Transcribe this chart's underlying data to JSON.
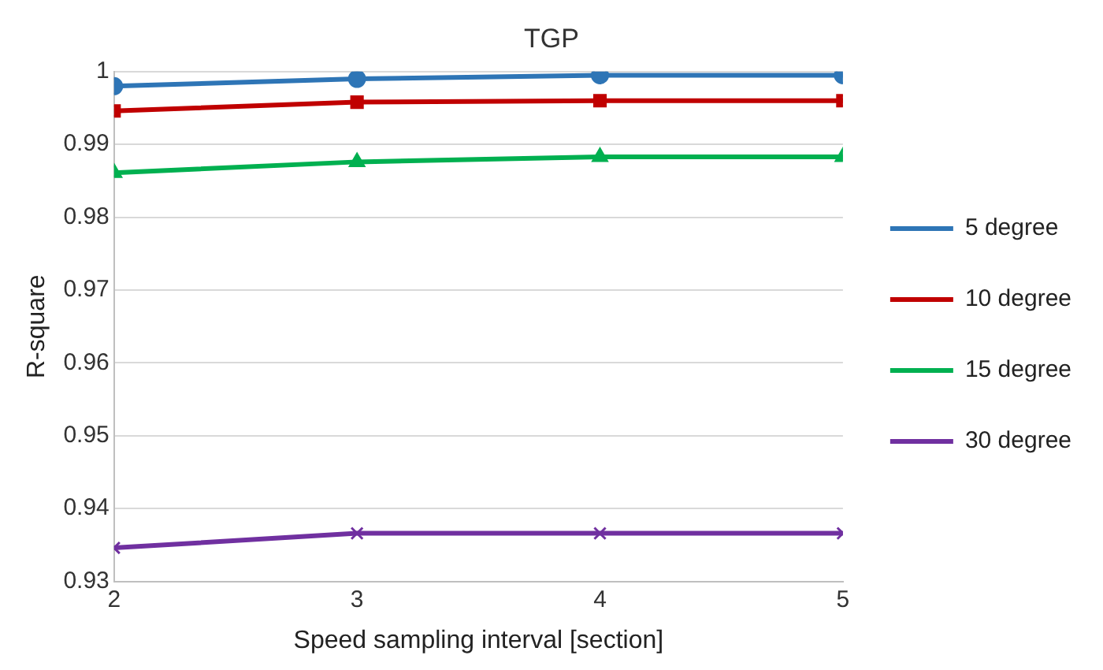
{
  "chart_data": {
    "type": "line",
    "title": "TGP",
    "xlabel": "Speed sampling interval [section]",
    "ylabel": "R-square",
    "x": [
      2,
      3,
      4,
      5
    ],
    "xlim": [
      2,
      5
    ],
    "xticks": [
      2,
      3,
      4,
      5
    ],
    "ylim": [
      0.93,
      1
    ],
    "yticks": [
      0.93,
      0.94,
      0.95,
      0.96,
      0.97,
      0.98,
      0.99,
      1
    ],
    "grid": "y",
    "legend": "right",
    "series": [
      {
        "name": "5 degree",
        "color": "#2e75b6",
        "marker": "circle",
        "values": [
          0.998,
          0.999,
          0.9995,
          0.9995
        ]
      },
      {
        "name": "10 degree",
        "color": "#c00000",
        "marker": "square",
        "values": [
          0.9946,
          0.9958,
          0.996,
          0.996
        ]
      },
      {
        "name": "15 degree",
        "color": "#00b050",
        "marker": "triangle",
        "values": [
          0.9861,
          0.9876,
          0.9883,
          0.9883
        ]
      },
      {
        "name": "30 degree",
        "color": "#7030a0",
        "marker": "cross",
        "values": [
          0.9346,
          0.9366,
          0.9366,
          0.9366
        ]
      }
    ]
  }
}
